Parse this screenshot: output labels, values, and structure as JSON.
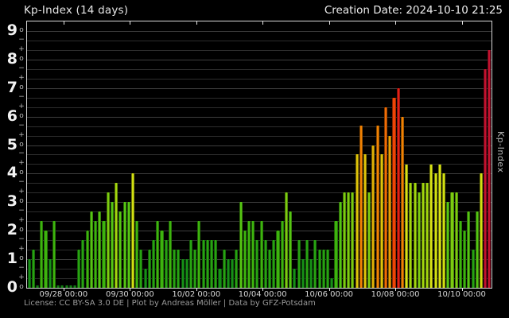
{
  "header": {
    "title": "Kp-Index (14 days)",
    "creation_date": "Creation Date: 2024-10-10 21:25"
  },
  "footer": {
    "license_line": "License: CC BY-SA 3.0 DE | Plot by Andreas Möller | Data by GFZ-Potsdam"
  },
  "axes": {
    "right_axis_label": "Kp-Index",
    "y_major_ticks": [
      9,
      8,
      7,
      6,
      5,
      4,
      3,
      2,
      1,
      0
    ],
    "y_sub_marks": [
      "+",
      "o",
      "-"
    ],
    "x_tick_labels": [
      "09/28 00:00",
      "09/30 00:00",
      "10/02 00:00",
      "10/04 00:00",
      "10/06 00:00",
      "10/08 00:00",
      "10/10 00:00"
    ]
  },
  "chart_data": {
    "type": "bar",
    "title": "Kp-Index (14 days)",
    "xlabel": "",
    "ylabel": "Kp-Index",
    "ylim": [
      0,
      9.33
    ],
    "grid": "horizontal-thirds",
    "legend": "none",
    "interval_hours": 3,
    "series_start": "2024-09-26 21:00 UTC",
    "series_end": "2024-10-10 21:00 UTC",
    "x_tick_bar_indices": [
      9,
      25,
      41,
      57,
      73,
      89,
      105
    ],
    "values": [
      1.0,
      1.33,
      0.0,
      2.33,
      2.0,
      1.0,
      2.33,
      0.0,
      0.0,
      0.0,
      0.0,
      0.0,
      1.33,
      1.67,
      2.0,
      2.67,
      2.33,
      2.67,
      2.33,
      3.33,
      3.0,
      3.67,
      2.67,
      3.0,
      3.0,
      4.0,
      2.33,
      1.33,
      0.67,
      1.33,
      1.67,
      2.33,
      2.0,
      1.67,
      2.33,
      1.33,
      1.33,
      1.0,
      1.0,
      1.67,
      1.33,
      2.33,
      1.67,
      1.67,
      1.67,
      1.67,
      0.67,
      1.33,
      1.0,
      1.0,
      1.33,
      3.0,
      2.0,
      2.33,
      2.33,
      1.67,
      2.33,
      1.67,
      1.33,
      1.67,
      2.0,
      2.33,
      3.33,
      2.67,
      0.67,
      1.67,
      1.0,
      1.67,
      1.0,
      1.67,
      1.33,
      1.33,
      1.33,
      0.33,
      2.33,
      3.0,
      3.33,
      3.33,
      3.33,
      4.67,
      5.67,
      4.67,
      3.33,
      5.0,
      5.67,
      4.67,
      6.33,
      5.33,
      6.67,
      7.0,
      6.0,
      4.33,
      3.67,
      3.67,
      3.33,
      3.67,
      3.67,
      4.33,
      4.0,
      4.33,
      4.0,
      3.0,
      3.33,
      3.33,
      2.33,
      2.0,
      2.67,
      1.33,
      2.67,
      4.0,
      7.67,
      8.33
    ],
    "color_scale": [
      {
        "max": 0.2,
        "hex": "#128012"
      },
      {
        "max": 1.1,
        "hex": "#169016"
      },
      {
        "max": 1.8,
        "hex": "#27a312"
      },
      {
        "max": 2.45,
        "hex": "#3db40e"
      },
      {
        "max": 3.1,
        "hex": "#55c513"
      },
      {
        "max": 3.45,
        "hex": "#7ccc10"
      },
      {
        "max": 3.8,
        "hex": "#a2d60e"
      },
      {
        "max": 4.1,
        "hex": "#d2e012"
      },
      {
        "max": 4.45,
        "hex": "#d8e215"
      },
      {
        "max": 4.8,
        "hex": "#dfc40a"
      },
      {
        "max": 5.1,
        "hex": "#e0b106"
      },
      {
        "max": 5.45,
        "hex": "#eaa004"
      },
      {
        "max": 6.1,
        "hex": "#f08203"
      },
      {
        "max": 6.45,
        "hex": "#f06c05"
      },
      {
        "max": 6.8,
        "hex": "#ee4507"
      },
      {
        "max": 7.45,
        "hex": "#e32016"
      },
      {
        "max": 9.33,
        "hex": "#c2122f"
      }
    ],
    "grid_colors": {
      "minor": "#2d2d2d",
      "major": "#3e3e3e"
    },
    "frame_color": "#d8d8d8",
    "background": "#000000"
  }
}
